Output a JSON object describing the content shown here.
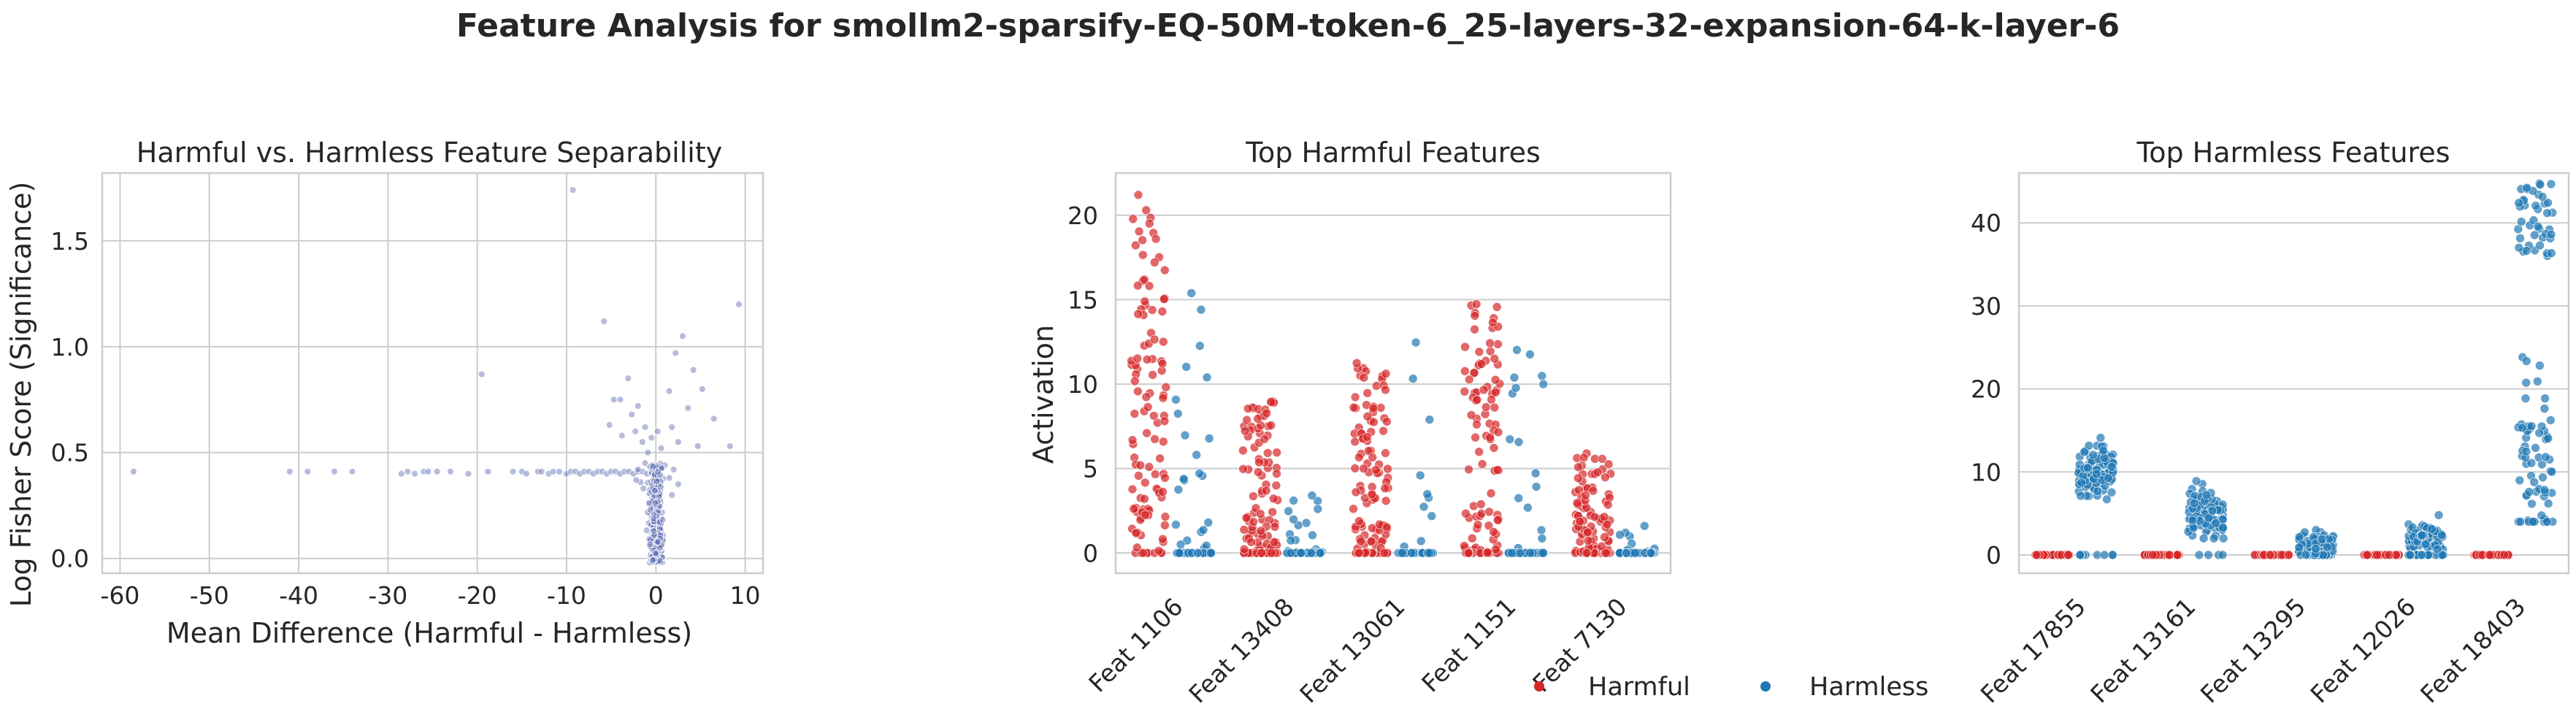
{
  "figure": {
    "title": "Feature Analysis for smollm2-sparsify-EQ-50M-token-6_25-layers-32-expansion-64-k-layer-6"
  },
  "colors": {
    "harmful": "#d62728",
    "harmless": "#1f77b4",
    "scatter": "#5c6bb2",
    "grid": "#cccccc",
    "spine": "#cccccc"
  },
  "legend": {
    "items": [
      {
        "label": "Harmful",
        "color": "#d62728"
      },
      {
        "label": "Harmless",
        "color": "#1f77b4"
      }
    ],
    "placement": "bottom-center"
  },
  "chart_data": [
    {
      "type": "scatter",
      "title": "Harmful vs. Harmless Feature Separability",
      "xlabel": "Mean Difference (Harmful - Harmless)",
      "ylabel": "Log Fisher Score (Significance)",
      "xlim": [
        -62,
        12
      ],
      "ylim": [
        -0.07,
        1.82
      ],
      "xticks": [
        -60,
        -50,
        -40,
        -30,
        -20,
        -10,
        0,
        10
      ],
      "yticks": [
        0.0,
        0.5,
        1.0,
        1.5
      ],
      "grid": true,
      "points": [
        [
          -58.5,
          0.41
        ],
        [
          -41,
          0.41
        ],
        [
          -39,
          0.41
        ],
        [
          -36,
          0.41
        ],
        [
          -34,
          0.41
        ],
        [
          -28.5,
          0.4
        ],
        [
          -27.8,
          0.41
        ],
        [
          -27,
          0.4
        ],
        [
          -26,
          0.41
        ],
        [
          -25.5,
          0.41
        ],
        [
          -24.5,
          0.41
        ],
        [
          -23,
          0.41
        ],
        [
          -21,
          0.4
        ],
        [
          -18.8,
          0.41
        ],
        [
          -16,
          0.41
        ],
        [
          -15,
          0.41
        ],
        [
          -14.5,
          0.4
        ],
        [
          -13.2,
          0.41
        ],
        [
          -12.8,
          0.41
        ],
        [
          -12,
          0.4
        ],
        [
          -11.5,
          0.41
        ],
        [
          -10.8,
          0.41
        ],
        [
          -10,
          0.4
        ],
        [
          -9.5,
          0.41
        ],
        [
          -9,
          0.41
        ],
        [
          -8.5,
          0.4
        ],
        [
          -8,
          0.41
        ],
        [
          -7.5,
          0.41
        ],
        [
          -7,
          0.4
        ],
        [
          -6.5,
          0.41
        ],
        [
          -6,
          0.41
        ],
        [
          -5.5,
          0.4
        ],
        [
          -5,
          0.41
        ],
        [
          -4.5,
          0.41
        ],
        [
          -4,
          0.4
        ],
        [
          -3.5,
          0.41
        ],
        [
          -3,
          0.41
        ],
        [
          -2.5,
          0.4
        ],
        [
          -2,
          0.41
        ],
        [
          -1.5,
          0.41
        ],
        [
          -1,
          0.4
        ],
        [
          -0.5,
          0.41
        ],
        [
          -9.3,
          1.74
        ],
        [
          -19.5,
          0.87
        ],
        [
          -5.8,
          1.12
        ],
        [
          -4.7,
          0.75
        ],
        [
          -4,
          0.75
        ],
        [
          -5.2,
          0.63
        ],
        [
          -3.8,
          0.58
        ],
        [
          -3.1,
          0.85
        ],
        [
          -2.7,
          0.68
        ],
        [
          -2.3,
          0.6
        ],
        [
          -2,
          0.72
        ],
        [
          -1.5,
          0.55
        ],
        [
          -1.2,
          0.62
        ],
        [
          -0.9,
          0.5
        ],
        [
          -0.5,
          0.57
        ],
        [
          0.2,
          0.6
        ],
        [
          0.6,
          0.52
        ],
        [
          1.5,
          0.79
        ],
        [
          1.8,
          0.62
        ],
        [
          2.2,
          0.97
        ],
        [
          2.5,
          0.55
        ],
        [
          3,
          1.05
        ],
        [
          3.6,
          0.71
        ],
        [
          4.2,
          0.89
        ],
        [
          4.7,
          0.53
        ],
        [
          5.2,
          0.8
        ],
        [
          6.5,
          0.66
        ],
        [
          8.3,
          0.53
        ],
        [
          9.3,
          1.2
        ],
        [
          1.0,
          0.44
        ],
        [
          1.5,
          0.38
        ],
        [
          2.0,
          0.42
        ],
        [
          2.5,
          0.35
        ],
        [
          1.8,
          0.3
        ],
        [
          -2.0,
          0.42
        ],
        [
          -1.7,
          0.36
        ],
        [
          -1.4,
          0.33
        ],
        [
          -1.2,
          0.45
        ],
        [
          -2.2,
          0.37
        ]
      ],
      "core_cluster": {
        "x_range": [
          -1.8,
          1.6
        ],
        "y_range": [
          -0.02,
          0.45
        ],
        "count": 420
      }
    },
    {
      "type": "scatter",
      "title": "Top Harmful Features",
      "xlabel": "",
      "ylabel": "Activation",
      "ylim": [
        -1.2,
        22.5
      ],
      "yticks": [
        0,
        5,
        10,
        15,
        20
      ],
      "categories": [
        "Feat 1106",
        "Feat 13408",
        "Feat 13061",
        "Feat 1151",
        "Feat 7130"
      ],
      "series": [
        {
          "name": "Harmful",
          "color": "#d62728",
          "offset": -0.2,
          "distribution": [
            {
              "n": 110,
              "min": 0,
              "max": 21.3,
              "zero_frac": 0.05
            },
            {
              "n": 110,
              "min": 0,
              "max": 9.0,
              "zero_frac": 0.2
            },
            {
              "n": 110,
              "min": 0,
              "max": 11.3,
              "zero_frac": 0.1
            },
            {
              "n": 110,
              "min": 0,
              "max": 14.8,
              "zero_frac": 0.15
            },
            {
              "n": 110,
              "min": 0,
              "max": 6.0,
              "zero_frac": 0.2
            }
          ]
        },
        {
          "name": "Harmless",
          "color": "#1f77b4",
          "offset": 0.2,
          "distribution": [
            {
              "n": 110,
              "min": 0,
              "max": 15.6,
              "zero_frac": 0.78
            },
            {
              "n": 110,
              "min": 0,
              "max": 3.6,
              "zero_frac": 0.88
            },
            {
              "n": 110,
              "min": 0,
              "max": 14.6,
              "zero_frac": 0.9
            },
            {
              "n": 110,
              "min": 0,
              "max": 12.7,
              "zero_frac": 0.88
            },
            {
              "n": 110,
              "min": 0,
              "max": 3.0,
              "zero_frac": 0.88
            }
          ]
        }
      ]
    },
    {
      "type": "scatter",
      "title": "Top Harmless Features",
      "xlabel": "",
      "ylabel": "",
      "ylim": [
        -2.2,
        46
      ],
      "yticks": [
        0,
        10,
        20,
        30,
        40
      ],
      "categories": [
        "Feat 17855",
        "Feat 13161",
        "Feat 13295",
        "Feat 12026",
        "Feat 18403"
      ],
      "series": [
        {
          "name": "Harmful",
          "color": "#d62728",
          "offset": -0.2,
          "distribution": [
            {
              "n": 110,
              "min": 0,
              "max": 0,
              "zero_frac": 1
            },
            {
              "n": 110,
              "min": 0,
              "max": 0,
              "zero_frac": 1
            },
            {
              "n": 110,
              "min": 0,
              "max": 0,
              "zero_frac": 1
            },
            {
              "n": 110,
              "min": 0,
              "max": 0,
              "zero_frac": 1
            },
            {
              "n": 110,
              "min": 0,
              "max": 0,
              "zero_frac": 1
            }
          ]
        },
        {
          "name": "Harmless",
          "color": "#1f77b4",
          "offset": 0.2,
          "distribution": [
            {
              "n": 110,
              "min": 5,
              "max": 16.5,
              "zero_frac": 0.08,
              "center": 10
            },
            {
              "n": 110,
              "min": 2,
              "max": 12,
              "zero_frac": 0.05,
              "center": 5
            },
            {
              "n": 110,
              "min": 0,
              "max": 4.5,
              "zero_frac": 0.3,
              "center": 1.5
            },
            {
              "n": 110,
              "min": 0,
              "max": 6.5,
              "zero_frac": 0.3,
              "center": 2
            },
            {
              "n": 110,
              "min": 4,
              "max": 45,
              "zero_frac": 0,
              "center": 11,
              "upper_cluster": [
                36,
                45
              ]
            }
          ]
        }
      ]
    }
  ]
}
